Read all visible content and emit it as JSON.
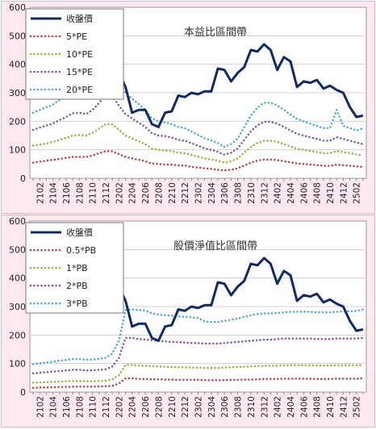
{
  "chart_data": [
    {
      "type": "line",
      "title": "本益比區間帶",
      "xlabel": "",
      "ylabel": "",
      "ylim": [
        0,
        600
      ],
      "yticks": [
        0,
        100,
        200,
        300,
        400,
        500,
        600
      ],
      "grid": true,
      "legend_position": "top-left",
      "x": [
        "2101",
        "2102",
        "2103",
        "2104",
        "2105",
        "2106",
        "2107",
        "2108",
        "2109",
        "2110",
        "2111",
        "2112",
        "2201",
        "2202",
        "2203",
        "2204",
        "2205",
        "2206",
        "2207",
        "2208",
        "2209",
        "2210",
        "2211",
        "2212",
        "2301",
        "2302",
        "2303",
        "2304",
        "2305",
        "2306",
        "2307",
        "2308",
        "2309",
        "2310",
        "2311",
        "2312",
        "2401",
        "2402",
        "2403",
        "2404",
        "2405",
        "2406",
        "2407",
        "2408",
        "2409",
        "2410",
        "2411",
        "2412",
        "2501",
        "2502",
        "2503"
      ],
      "xtick_labels": [
        "2102",
        "2104",
        "2106",
        "2108",
        "2110",
        "2112",
        "2202",
        "2204",
        "2206",
        "2208",
        "2210",
        "2212",
        "2302",
        "2304",
        "2306",
        "2308",
        "2310",
        "2312",
        "2402",
        "2404",
        "2406",
        "2408",
        "2410",
        "2412",
        "2502"
      ],
      "series": [
        {
          "name": "收盤價",
          "color": "#0f2a66",
          "style": "solid",
          "width": 3,
          "values": [
            285,
            300,
            310,
            330,
            360,
            380,
            360,
            320,
            320,
            380,
            385,
            485,
            410,
            370,
            320,
            230,
            240,
            240,
            190,
            180,
            230,
            235,
            290,
            285,
            300,
            295,
            305,
            305,
            385,
            380,
            340,
            370,
            390,
            450,
            445,
            470,
            450,
            380,
            425,
            410,
            320,
            340,
            335,
            345,
            315,
            325,
            310,
            300,
            250,
            215,
            220
          ]
        },
        {
          "name": "5*PE",
          "color": "#c0393b",
          "style": "dotted",
          "width": 2.5,
          "values": [
            55,
            58,
            62,
            65,
            68,
            72,
            75,
            75,
            75,
            80,
            88,
            95,
            95,
            85,
            75,
            70,
            65,
            60,
            52,
            50,
            48,
            48,
            45,
            45,
            40,
            38,
            35,
            33,
            30,
            28,
            30,
            35,
            45,
            55,
            62,
            66,
            66,
            64,
            60,
            56,
            52,
            50,
            48,
            46,
            44,
            44,
            48,
            46,
            44,
            42,
            40
          ]
        },
        {
          "name": "10*PE",
          "color": "#8fb23a",
          "style": "dotted",
          "width": 2.5,
          "values": [
            115,
            118,
            122,
            128,
            135,
            142,
            150,
            152,
            150,
            160,
            175,
            190,
            190,
            170,
            150,
            140,
            130,
            120,
            105,
            100,
            98,
            95,
            90,
            88,
            82,
            76,
            70,
            66,
            62,
            55,
            60,
            70,
            90,
            110,
            124,
            132,
            132,
            128,
            120,
            112,
            104,
            100,
            96,
            92,
            88,
            88,
            96,
            92,
            88,
            84,
            80
          ]
        },
        {
          "name": "15*PE",
          "color": "#7d4fa0",
          "style": "dotted",
          "width": 2.5,
          "values": [
            170,
            178,
            185,
            192,
            205,
            215,
            228,
            230,
            225,
            240,
            265,
            290,
            290,
            255,
            225,
            210,
            195,
            180,
            158,
            150,
            148,
            143,
            135,
            132,
            123,
            114,
            105,
            100,
            93,
            83,
            90,
            105,
            135,
            165,
            186,
            198,
            198,
            192,
            180,
            168,
            156,
            150,
            144,
            138,
            132,
            132,
            144,
            138,
            132,
            126,
            120
          ]
        },
        {
          "name": "20*PE",
          "color": "#43a9c3",
          "style": "dotted",
          "width": 2.5,
          "values": [
            230,
            240,
            250,
            258,
            275,
            290,
            305,
            305,
            300,
            320,
            355,
            385,
            385,
            340,
            300,
            280,
            260,
            240,
            210,
            200,
            196,
            190,
            180,
            176,
            164,
            152,
            140,
            133,
            124,
            110,
            120,
            140,
            180,
            220,
            248,
            265,
            265,
            256,
            240,
            224,
            208,
            200,
            192,
            184,
            176,
            176,
            240,
            184,
            176,
            168,
            175
          ]
        }
      ]
    },
    {
      "type": "line",
      "title": "股價淨值比區間帶",
      "xlabel": "",
      "ylabel": "",
      "ylim": [
        0,
        600
      ],
      "yticks": [
        0,
        100,
        200,
        300,
        400,
        500,
        600
      ],
      "grid": true,
      "legend_position": "top-left",
      "x": [
        "2101",
        "2102",
        "2103",
        "2104",
        "2105",
        "2106",
        "2107",
        "2108",
        "2109",
        "2110",
        "2111",
        "2112",
        "2201",
        "2202",
        "2203",
        "2204",
        "2205",
        "2206",
        "2207",
        "2208",
        "2209",
        "2210",
        "2211",
        "2212",
        "2301",
        "2302",
        "2303",
        "2304",
        "2305",
        "2306",
        "2307",
        "2308",
        "2309",
        "2310",
        "2311",
        "2312",
        "2401",
        "2402",
        "2403",
        "2404",
        "2405",
        "2406",
        "2407",
        "2408",
        "2409",
        "2410",
        "2411",
        "2412",
        "2501",
        "2502",
        "2503"
      ],
      "xtick_labels": [
        "2102",
        "2104",
        "2106",
        "2108",
        "2110",
        "2112",
        "2202",
        "2204",
        "2206",
        "2208",
        "2210",
        "2212",
        "2302",
        "2304",
        "2306",
        "2308",
        "2310",
        "2312",
        "2402",
        "2404",
        "2406",
        "2408",
        "2410",
        "2412",
        "2502"
      ],
      "series": [
        {
          "name": "收盤價",
          "color": "#0f2a66",
          "style": "solid",
          "width": 3,
          "values": [
            285,
            300,
            310,
            330,
            360,
            380,
            360,
            320,
            320,
            380,
            385,
            485,
            410,
            370,
            320,
            230,
            240,
            240,
            190,
            180,
            230,
            235,
            290,
            285,
            300,
            295,
            305,
            305,
            385,
            380,
            340,
            370,
            390,
            450,
            445,
            470,
            450,
            380,
            425,
            410,
            320,
            340,
            335,
            345,
            315,
            325,
            310,
            300,
            250,
            215,
            220
          ]
        },
        {
          "name": "0.5*PB",
          "color": "#c0393b",
          "style": "dotted",
          "width": 2.5,
          "values": [
            15,
            16,
            16,
            17,
            18,
            18,
            19,
            19,
            19,
            19,
            20,
            20,
            22,
            30,
            48,
            48,
            46,
            46,
            45,
            45,
            44,
            44,
            43,
            43,
            43,
            43,
            42,
            42,
            42,
            42,
            43,
            43,
            44,
            44,
            45,
            46,
            46,
            46,
            47,
            47,
            47,
            47,
            47,
            46,
            46,
            46,
            47,
            47,
            47,
            47,
            48
          ]
        },
        {
          "name": "1*PB",
          "color": "#8fb23a",
          "style": "dotted",
          "width": 2.5,
          "values": [
            33,
            34,
            35,
            36,
            37,
            38,
            39,
            39,
            38,
            38,
            39,
            40,
            45,
            60,
            95,
            95,
            93,
            92,
            91,
            90,
            89,
            88,
            87,
            87,
            86,
            86,
            85,
            85,
            85,
            86,
            87,
            88,
            89,
            90,
            91,
            92,
            92,
            93,
            94,
            94,
            94,
            94,
            94,
            93,
            93,
            93,
            94,
            94,
            94,
            94,
            95
          ]
        },
        {
          "name": "2*PB",
          "color": "#7d4fa0",
          "style": "dotted",
          "width": 2.5,
          "values": [
            66,
            68,
            70,
            72,
            74,
            76,
            78,
            78,
            76,
            76,
            78,
            80,
            90,
            120,
            190,
            190,
            186,
            184,
            182,
            180,
            178,
            176,
            175,
            174,
            172,
            172,
            170,
            170,
            170,
            172,
            174,
            176,
            178,
            180,
            182,
            184,
            184,
            186,
            188,
            188,
            188,
            188,
            188,
            186,
            186,
            186,
            188,
            188,
            188,
            188,
            190
          ]
        },
        {
          "name": "3*PB",
          "color": "#43a9c3",
          "style": "dotted",
          "width": 2.5,
          "values": [
            98,
            101,
            104,
            107,
            110,
            113,
            116,
            116,
            114,
            114,
            117,
            120,
            135,
            180,
            288,
            290,
            288,
            286,
            276,
            272,
            270,
            268,
            266,
            264,
            262,
            260,
            248,
            246,
            246,
            250,
            254,
            258,
            264,
            270,
            274,
            276,
            276,
            278,
            280,
            282,
            282,
            282,
            282,
            280,
            280,
            280,
            282,
            283,
            284,
            285,
            290
          ]
        }
      ]
    }
  ]
}
